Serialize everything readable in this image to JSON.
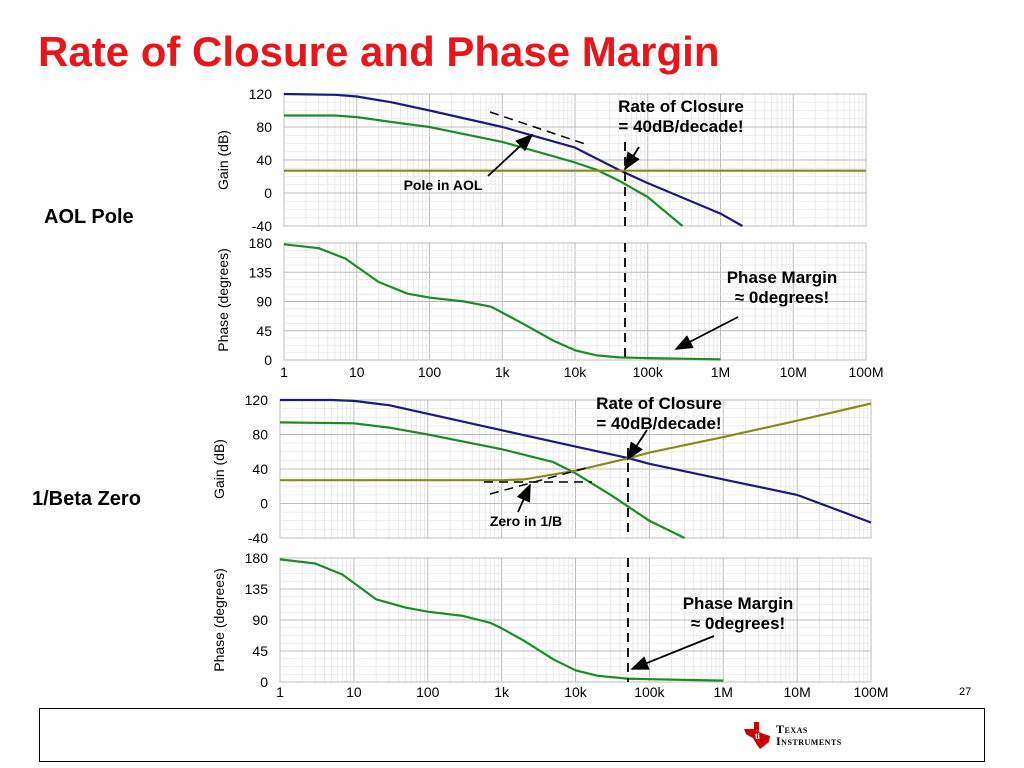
{
  "slide": {
    "title": "Rate of Closure and Phase Margin",
    "label_top": "AOL Pole",
    "label_bottom": "1/Beta Zero",
    "page_number": "27",
    "company": [
      "Texas",
      "Instruments"
    ]
  },
  "colors": {
    "title": "#e8161a",
    "aol": "#1a1a80",
    "green": "#1f8a2a",
    "beta": "#8a8a1a",
    "logo": "#cc0000"
  },
  "chart_data": [
    {
      "type": "line",
      "ylabel": "Gain (dB)",
      "xscale": "log",
      "xlim": [
        1,
        100000000
      ],
      "ylim": [
        -40,
        120
      ],
      "yticks": [
        120,
        80,
        40,
        0,
        -40
      ],
      "grid": true,
      "series": [
        {
          "key": "aol",
          "x": [
            1,
            5,
            10,
            30,
            100,
            1000,
            10000,
            40000,
            100000,
            1000000,
            2000000
          ],
          "y": [
            120,
            119,
            117,
            110,
            100,
            80,
            55,
            28,
            12,
            -25,
            -40
          ]
        },
        {
          "key": "loop",
          "x": [
            1,
            5,
            10,
            30,
            100,
            1000,
            4000,
            10000,
            20000,
            40000,
            100000,
            300000
          ],
          "y": [
            94,
            94,
            92,
            86,
            80,
            62,
            47,
            37,
            28,
            15,
            -5,
            -40
          ]
        },
        {
          "key": "beta",
          "x": [
            1,
            100000000
          ],
          "y": [
            27,
            27
          ]
        }
      ],
      "annotations": [
        {
          "lines": [
            "Rate of Closure",
            "= 40dB/decade!"
          ],
          "x": 45000,
          "y": 27
        },
        {
          "lines": [
            "Pole in AOL"
          ],
          "x": 3000,
          "y": 72
        }
      ]
    },
    {
      "type": "line",
      "ylabel": "Phase (degrees)",
      "xscale": "log",
      "xlim": [
        1,
        100000000
      ],
      "ylim": [
        0,
        180
      ],
      "yticks": [
        180,
        135,
        90,
        45,
        0
      ],
      "xticks": [
        "1",
        "10",
        "100",
        "1k",
        "10k",
        "100k",
        "1M",
        "10M",
        "100M"
      ],
      "grid": true,
      "series": [
        {
          "key": "phase",
          "x": [
            1,
            3,
            7,
            20,
            50,
            100,
            300,
            700,
            1000,
            2000,
            5000,
            10000,
            20000,
            40000,
            100000,
            300000,
            1000000
          ],
          "y": [
            178,
            172,
            156,
            120,
            102,
            96,
            90,
            82,
            73,
            55,
            30,
            15,
            7,
            4,
            3,
            2,
            1
          ]
        }
      ],
      "annotations": [
        {
          "lines": [
            "Phase Margin",
            "≈ 0degrees!"
          ],
          "x": 45000,
          "y": 4
        }
      ]
    },
    {
      "type": "line",
      "ylabel": "Gain (dB)",
      "xscale": "log",
      "xlim": [
        1,
        100000000
      ],
      "ylim": [
        -40,
        120
      ],
      "yticks": [
        120,
        80,
        40,
        0,
        -40
      ],
      "grid": true,
      "series": [
        {
          "key": "aol",
          "x": [
            1,
            5,
            10,
            30,
            100,
            1000,
            10000,
            50000,
            100000,
            1000000,
            10000000,
            100000000
          ],
          "y": [
            120,
            120,
            119,
            114,
            104,
            85,
            66,
            53,
            46,
            28,
            10,
            -22
          ]
        },
        {
          "key": "loop",
          "x": [
            1,
            10,
            30,
            100,
            1000,
            5000,
            10000,
            30000,
            100000,
            300000
          ],
          "y": [
            94,
            93,
            88,
            80,
            63,
            48,
            35,
            10,
            -20,
            -40
          ]
        },
        {
          "key": "beta",
          "x": [
            1,
            1000,
            2000,
            10000,
            50000,
            100000,
            1000000,
            10000000,
            100000000
          ],
          "y": [
            27,
            27,
            28,
            38,
            52,
            59,
            77,
            96,
            116
          ]
        }
      ],
      "annotations": [
        {
          "lines": [
            "Rate of Closure",
            "= 40dB/decade!"
          ],
          "x": 50000,
          "y": 52
        },
        {
          "lines": [
            "Zero in 1/B"
          ],
          "x": 2500,
          "y": 27
        }
      ]
    },
    {
      "type": "line",
      "ylabel": "Phase (degrees)",
      "xscale": "log",
      "xlim": [
        1,
        100000000
      ],
      "ylim": [
        0,
        180
      ],
      "yticks": [
        180,
        135,
        90,
        45,
        0
      ],
      "xticks": [
        "1",
        "10",
        "100",
        "1k",
        "10k",
        "100k",
        "1M",
        "10M",
        "100M"
      ],
      "grid": true,
      "series": [
        {
          "key": "phase",
          "x": [
            1,
            3,
            7,
            20,
            50,
            100,
            300,
            700,
            1000,
            2000,
            5000,
            10000,
            20000,
            50000,
            100000,
            300000,
            1000000
          ],
          "y": [
            178,
            172,
            156,
            120,
            108,
            102,
            96,
            86,
            78,
            60,
            33,
            17,
            9,
            5,
            4,
            3,
            2
          ]
        }
      ],
      "annotations": [
        {
          "lines": [
            "Phase Margin",
            "≈ 0degrees!"
          ],
          "x": 50000,
          "y": 4
        }
      ]
    }
  ]
}
